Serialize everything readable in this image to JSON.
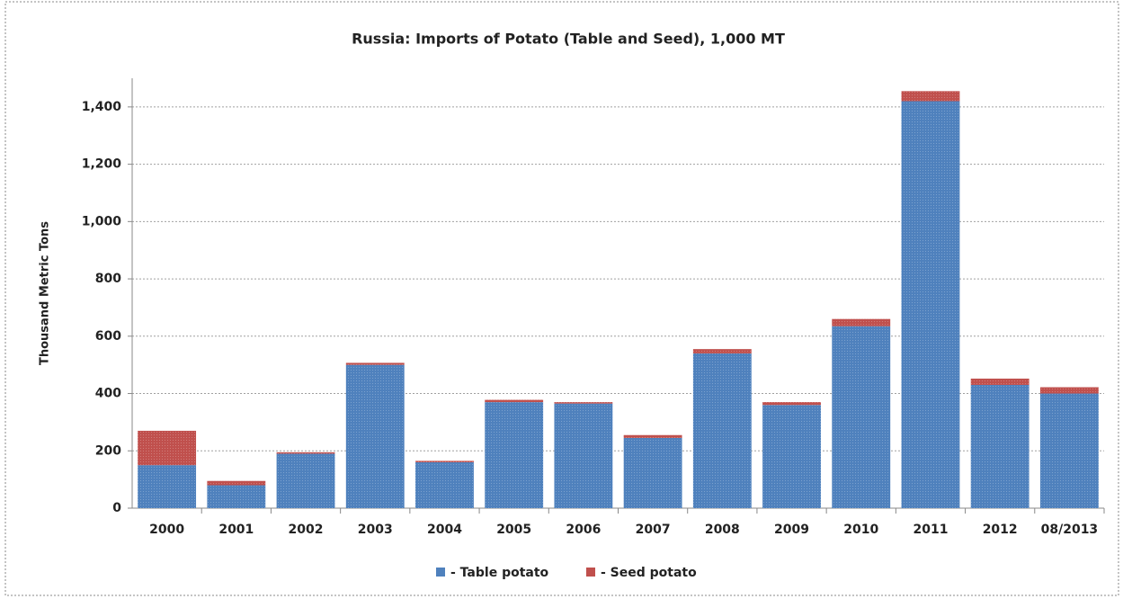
{
  "chart_data": {
    "type": "stacked_bar",
    "title": "Russia: Imports of Potato (Table and Seed), 1,000 MT",
    "y_label": "Thousand Metric Tons",
    "categories": [
      "2000",
      "2001",
      "2002",
      "2003",
      "2004",
      "2005",
      "2006",
      "2007",
      "2008",
      "2009",
      "2010",
      "2011",
      "2012",
      "08/2013"
    ],
    "series": [
      {
        "name": "- Table potato",
        "color": "#4f81bd",
        "values": [
          150,
          80,
          190,
          500,
          160,
          370,
          365,
          245,
          540,
          360,
          635,
          1420,
          430,
          400
        ]
      },
      {
        "name": "- Seed potato",
        "color": "#c0504d",
        "values": [
          120,
          15,
          5,
          7,
          5,
          8,
          5,
          10,
          15,
          10,
          25,
          35,
          22,
          22
        ]
      }
    ],
    "ylim": [
      0,
      1500
    ],
    "yticks": [
      0,
      200,
      400,
      600,
      800,
      {
        "value": 1000,
        "label": "1,000"
      },
      {
        "value": 1200,
        "label": "1,200"
      },
      {
        "value": 1400,
        "label": "1,400"
      }
    ],
    "grid": true,
    "legend": "bottom"
  }
}
